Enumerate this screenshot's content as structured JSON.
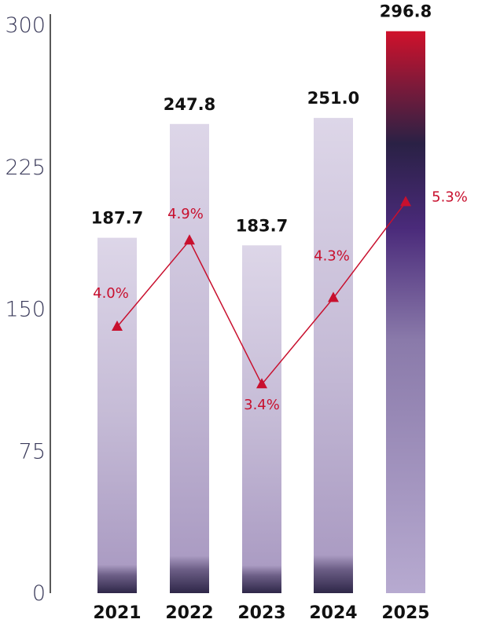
{
  "chart_data": {
    "type": "bar",
    "categories": [
      "2021",
      "2022",
      "2023",
      "2024",
      "2025"
    ],
    "series": [
      {
        "values": [
          187.7,
          247.8,
          183.7,
          251.0,
          296.8
        ],
        "labels": [
          "187.7",
          "247.8",
          "183.7",
          "251.0",
          "296.8"
        ]
      },
      {
        "type": "line",
        "values": [
          4.0,
          4.9,
          3.4,
          4.3,
          5.3
        ],
        "labels": [
          "4.0%",
          "4.9%",
          "3.4%",
          "4.3%",
          "5.3%"
        ]
      }
    ],
    "yticks": [
      "0",
      "75",
      "150",
      "225",
      "300"
    ],
    "ylim": [
      0,
      300
    ],
    "grid": false,
    "colors": {
      "bar_light": "#ddd6e8",
      "bar_mid": "#b5a8ca",
      "bar_dark": "#2e2748",
      "highlight_top": "#d0112b",
      "highlight_mid": "#4a2a7a",
      "line": "#c8102e",
      "axis": "#222222"
    }
  }
}
